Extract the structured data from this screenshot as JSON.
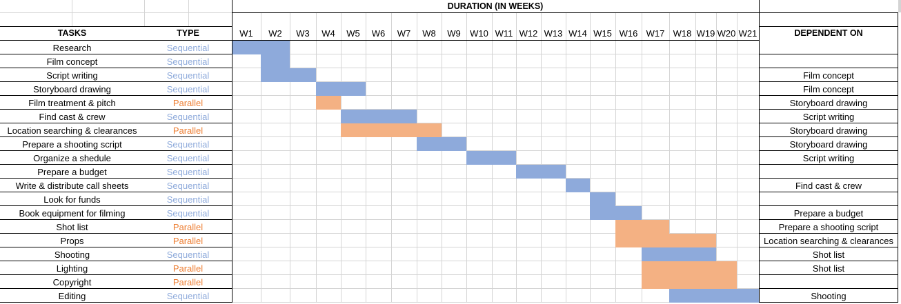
{
  "chart_data": {
    "type": "gantt",
    "title": "DURATION (IN WEEKS)",
    "headers": {
      "tasks": "TASKS",
      "type": "TYPE",
      "dependent": "DEPENDENT ON"
    },
    "weeks": [
      "W1",
      "W2",
      "W3",
      "W4",
      "W5",
      "W6",
      "W7",
      "W8",
      "W9",
      "W10",
      "W11",
      "W12",
      "W13",
      "W14",
      "W15",
      "W16",
      "W17",
      "W18",
      "W19",
      "W20",
      "W21"
    ],
    "colors": {
      "Sequential": "#8eaadb",
      "Parallel": "#f4b183",
      "Sequential_text": "#8eaadb",
      "Parallel_text": "#ed7d31"
    },
    "tasks": [
      {
        "name": "Research",
        "type": "Sequential",
        "start": 1,
        "end": 2,
        "dependent_on": ""
      },
      {
        "name": "Film concept",
        "type": "Sequential",
        "start": 2,
        "end": 2,
        "dependent_on": ""
      },
      {
        "name": "Script writing",
        "type": "Sequential",
        "start": 2,
        "end": 3,
        "dependent_on": "Film concept"
      },
      {
        "name": "Storyboard drawing",
        "type": "Sequential",
        "start": 4,
        "end": 5,
        "dependent_on": "Film concept"
      },
      {
        "name": "Film treatment & pitch",
        "type": "Parallel",
        "start": 4,
        "end": 4,
        "dependent_on": "Storyboard drawing"
      },
      {
        "name": "Find cast & crew",
        "type": "Sequential",
        "start": 5,
        "end": 7,
        "dependent_on": "Script writing"
      },
      {
        "name": "Location searching & clearances",
        "type": "Parallel",
        "start": 5,
        "end": 8,
        "dependent_on": "Storyboard drawing"
      },
      {
        "name": "Prepare a shooting script",
        "type": "Sequential",
        "start": 8,
        "end": 9,
        "dependent_on": "Storyboard drawing"
      },
      {
        "name": "Organize a shedule",
        "type": "Sequential",
        "start": 10,
        "end": 11,
        "dependent_on": "Script writing"
      },
      {
        "name": "Prepare a budget",
        "type": "Sequential",
        "start": 12,
        "end": 13,
        "dependent_on": ""
      },
      {
        "name": "Write & distribute call sheets",
        "type": "Sequential",
        "start": 14,
        "end": 14,
        "dependent_on": "Find cast & crew"
      },
      {
        "name": "Look for funds",
        "type": "Sequential",
        "start": 15,
        "end": 15,
        "dependent_on": ""
      },
      {
        "name": "Book equipment for filming",
        "type": "Sequential",
        "start": 15,
        "end": 16,
        "dependent_on": "Prepare a budget"
      },
      {
        "name": "Shot list",
        "type": "Parallel",
        "start": 16,
        "end": 17,
        "dependent_on": "Prepare a shooting script"
      },
      {
        "name": "Props",
        "type": "Parallel",
        "start": 16,
        "end": 19,
        "dependent_on": "Location searching & clearances"
      },
      {
        "name": "Shooting",
        "type": "Sequential",
        "start": 17,
        "end": 19,
        "dependent_on": "Shot list"
      },
      {
        "name": "Lighting",
        "type": "Parallel",
        "start": 17,
        "end": 20,
        "dependent_on": "Shot list"
      },
      {
        "name": "Copyright",
        "type": "Parallel",
        "start": 17,
        "end": 20,
        "dependent_on": ""
      },
      {
        "name": "Editing",
        "type": "Sequential",
        "start": 18,
        "end": 21,
        "dependent_on": "Shooting"
      }
    ]
  }
}
